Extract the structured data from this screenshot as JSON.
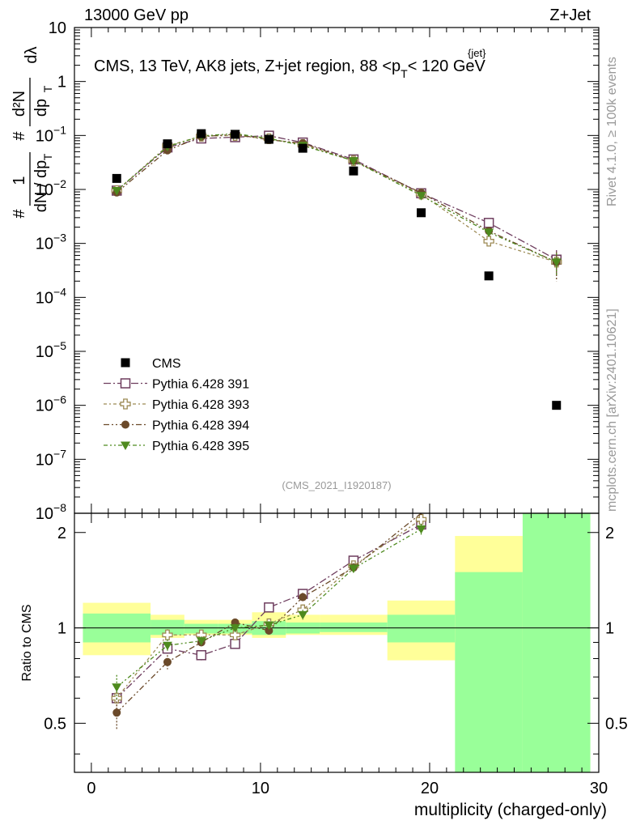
{
  "header": {
    "left": "13000 GeV pp",
    "right": "Z+Jet"
  },
  "side_labels": {
    "rivet": "Rivet 4.1.0, ≥ 100k events",
    "mcplots": "mcplots.cern.ch [arXiv:2401.10621]"
  },
  "chart_data": {
    "type": "scatter",
    "title": "CMS, 13 TeV, AK8 jets, Z+jet region, 88 < p_T^{jet} < 120 GeV",
    "title_parts": {
      "main": "CMS, 13 TeV, AK8 jets, Z+jet region, 88 <p",
      "sub": "T",
      "sup": "{jet}",
      "tail": "< 120 GeV"
    },
    "analysis_id": "(CMS_2021_I1920187)",
    "xlabel": "multiplicity (charged-only)",
    "ylabel": "1/dN/dp_T # d²N/dp_T dλ",
    "ylabel_parts": {
      "frac1_num": "1",
      "frac1_den": "dN / dp",
      "frac1_sub": "T",
      "hash1": "#",
      "hash2": "#",
      "frac2_num": "d²N",
      "frac2_den": "dp",
      "frac2_sub": "T",
      "frac2_tail": "dλ"
    },
    "ratio_ylabel": "Ratio to CMS",
    "xlim": [
      -1,
      30
    ],
    "ylim_log": [
      1e-08,
      10
    ],
    "ratio_ylim": [
      0.35,
      2.3
    ],
    "x_ticks": [
      0,
      10,
      20,
      30
    ],
    "y_ticks": [
      {
        "exp": -8,
        "label": "10",
        "sup": "−8"
      },
      {
        "exp": -7,
        "label": "10",
        "sup": "−7"
      },
      {
        "exp": -6,
        "label": "10",
        "sup": "−6"
      },
      {
        "exp": -5,
        "label": "10",
        "sup": "−5"
      },
      {
        "exp": -4,
        "label": "10",
        "sup": "−4"
      },
      {
        "exp": -3,
        "label": "10",
        "sup": "−3"
      },
      {
        "exp": -2,
        "label": "10",
        "sup": "−2"
      },
      {
        "exp": -1,
        "label": "10",
        "sup": "−1"
      },
      {
        "exp": 0,
        "label": "1",
        "sup": ""
      },
      {
        "exp": 1,
        "label": "10",
        "sup": ""
      }
    ],
    "ratio_ticks": [
      {
        "value": 0.5,
        "label": "0.5"
      },
      {
        "value": 1,
        "label": "1"
      },
      {
        "value": 2,
        "label": "2"
      }
    ],
    "bins": [
      {
        "lo": -0.5,
        "hi": 3.5
      },
      {
        "lo": 3.5,
        "hi": 5.5
      },
      {
        "lo": 5.5,
        "hi": 7.5
      },
      {
        "lo": 7.5,
        "hi": 9.5
      },
      {
        "lo": 9.5,
        "hi": 11.5
      },
      {
        "lo": 11.5,
        "hi": 13.5
      },
      {
        "lo": 13.5,
        "hi": 17.5
      },
      {
        "lo": 17.5,
        "hi": 21.5
      },
      {
        "lo": 21.5,
        "hi": 25.5
      },
      {
        "lo": 25.5,
        "hi": 29.5
      }
    ],
    "data": {
      "name": "CMS",
      "color": "#000000",
      "x": [
        1.5,
        4.5,
        6.5,
        8.5,
        10.5,
        12.5,
        15.5,
        19.5,
        23.5,
        27.5
      ],
      "y": [
        0.016,
        0.07,
        0.108,
        0.105,
        0.085,
        0.058,
        0.022,
        0.0037,
        0.00025,
        1e-06
      ]
    },
    "uncertainty_bands": {
      "inner_color": "#99ff99",
      "outer_color": "#ffff99",
      "inner": [
        [
          0.9,
          1.11
        ],
        [
          0.95,
          1.06
        ],
        [
          0.96,
          1.03
        ],
        [
          0.96,
          1.03
        ],
        [
          0.95,
          1.05
        ],
        [
          0.96,
          1.04
        ],
        [
          0.97,
          1.04
        ],
        [
          0.9,
          1.1
        ],
        [
          0.35,
          1.5
        ],
        [
          0.35,
          2.3
        ]
      ],
      "outer": [
        [
          0.82,
          1.2
        ],
        [
          0.93,
          1.1
        ],
        [
          0.95,
          1.06
        ],
        [
          0.95,
          1.06
        ],
        [
          0.93,
          1.12
        ],
        [
          0.95,
          1.1
        ],
        [
          0.95,
          1.1
        ],
        [
          0.79,
          1.22
        ],
        [
          0.55,
          1.95
        ],
        [
          0.35,
          2.3
        ]
      ]
    },
    "series": [
      {
        "name": "Pythia 6.428 391",
        "color": "#6e3d5e",
        "marker": "open-square",
        "x": [
          1.5,
          4.5,
          6.5,
          8.5,
          10.5,
          12.5,
          15.5,
          19.5,
          23.5,
          27.5
        ],
        "y": [
          0.0095,
          0.06,
          0.088,
          0.093,
          0.099,
          0.074,
          0.036,
          0.0085,
          0.0024,
          0.0005
        ],
        "yerr": [
          0.0004,
          0.002,
          0.002,
          0.002,
          0.002,
          0.002,
          0.001,
          0.0004,
          0.0003,
          0.00025
        ],
        "ratio": [
          0.6,
          0.86,
          0.82,
          0.89,
          1.16,
          1.28,
          1.63,
          2.12
        ],
        "ratio_err": [
          0.06,
          0.04,
          0.03,
          0.03,
          0.03,
          0.04,
          0.05,
          0.08
        ]
      },
      {
        "name": "Pythia 6.428 393",
        "color": "#9c8a54",
        "marker": "open-cross",
        "x": [
          1.5,
          4.5,
          6.5,
          8.5,
          10.5,
          12.5,
          15.5,
          19.5,
          23.5,
          27.5
        ],
        "y": [
          0.0095,
          0.064,
          0.097,
          0.1,
          0.087,
          0.068,
          0.034,
          0.0082,
          0.0011,
          0.00045
        ],
        "yerr": [
          0.0004,
          0.002,
          0.002,
          0.002,
          0.002,
          0.002,
          0.001,
          0.0004,
          0.0002,
          0.0002
        ],
        "ratio": [
          0.6,
          0.95,
          0.95,
          0.95,
          1.03,
          1.14,
          1.57,
          2.2
        ],
        "ratio_err": [
          0.06,
          0.04,
          0.03,
          0.03,
          0.03,
          0.04,
          0.05,
          0.08
        ]
      },
      {
        "name": "Pythia 6.428 394",
        "color": "#6b4a2a",
        "marker": "filled-circle",
        "x": [
          1.5,
          4.5,
          6.5,
          8.5,
          10.5,
          12.5,
          15.5,
          19.5,
          23.5,
          27.5
        ],
        "y": [
          0.0088,
          0.053,
          0.095,
          0.105,
          0.083,
          0.072,
          0.034,
          0.0087,
          0.0017,
          0.00045
        ],
        "yerr": [
          0.0004,
          0.002,
          0.002,
          0.002,
          0.002,
          0.002,
          0.001,
          0.0004,
          0.0003,
          0.00025
        ],
        "ratio": [
          0.54,
          0.78,
          0.9,
          1.04,
          0.98,
          1.25,
          1.55,
          2.35
        ],
        "ratio_err": [
          0.06,
          0.04,
          0.03,
          0.03,
          0.03,
          0.04,
          0.05,
          0.08
        ]
      },
      {
        "name": "Pythia 6.428 395",
        "color": "#4e8a1e",
        "marker": "filled-triangle-down",
        "x": [
          1.5,
          4.5,
          6.5,
          8.5,
          10.5,
          12.5,
          15.5,
          19.5,
          23.5,
          27.5
        ],
        "y": [
          0.0095,
          0.062,
          0.098,
          0.108,
          0.088,
          0.065,
          0.034,
          0.0077,
          0.0016,
          0.00045
        ],
        "yerr": [
          0.0004,
          0.002,
          0.002,
          0.002,
          0.002,
          0.002,
          0.001,
          0.0004,
          0.0003,
          0.0002
        ],
        "ratio": [
          0.65,
          0.88,
          0.91,
          1.0,
          1.02,
          1.1,
          1.54,
          2.05
        ],
        "ratio_err": [
          0.06,
          0.04,
          0.03,
          0.03,
          0.03,
          0.04,
          0.05,
          0.08
        ]
      }
    ]
  }
}
